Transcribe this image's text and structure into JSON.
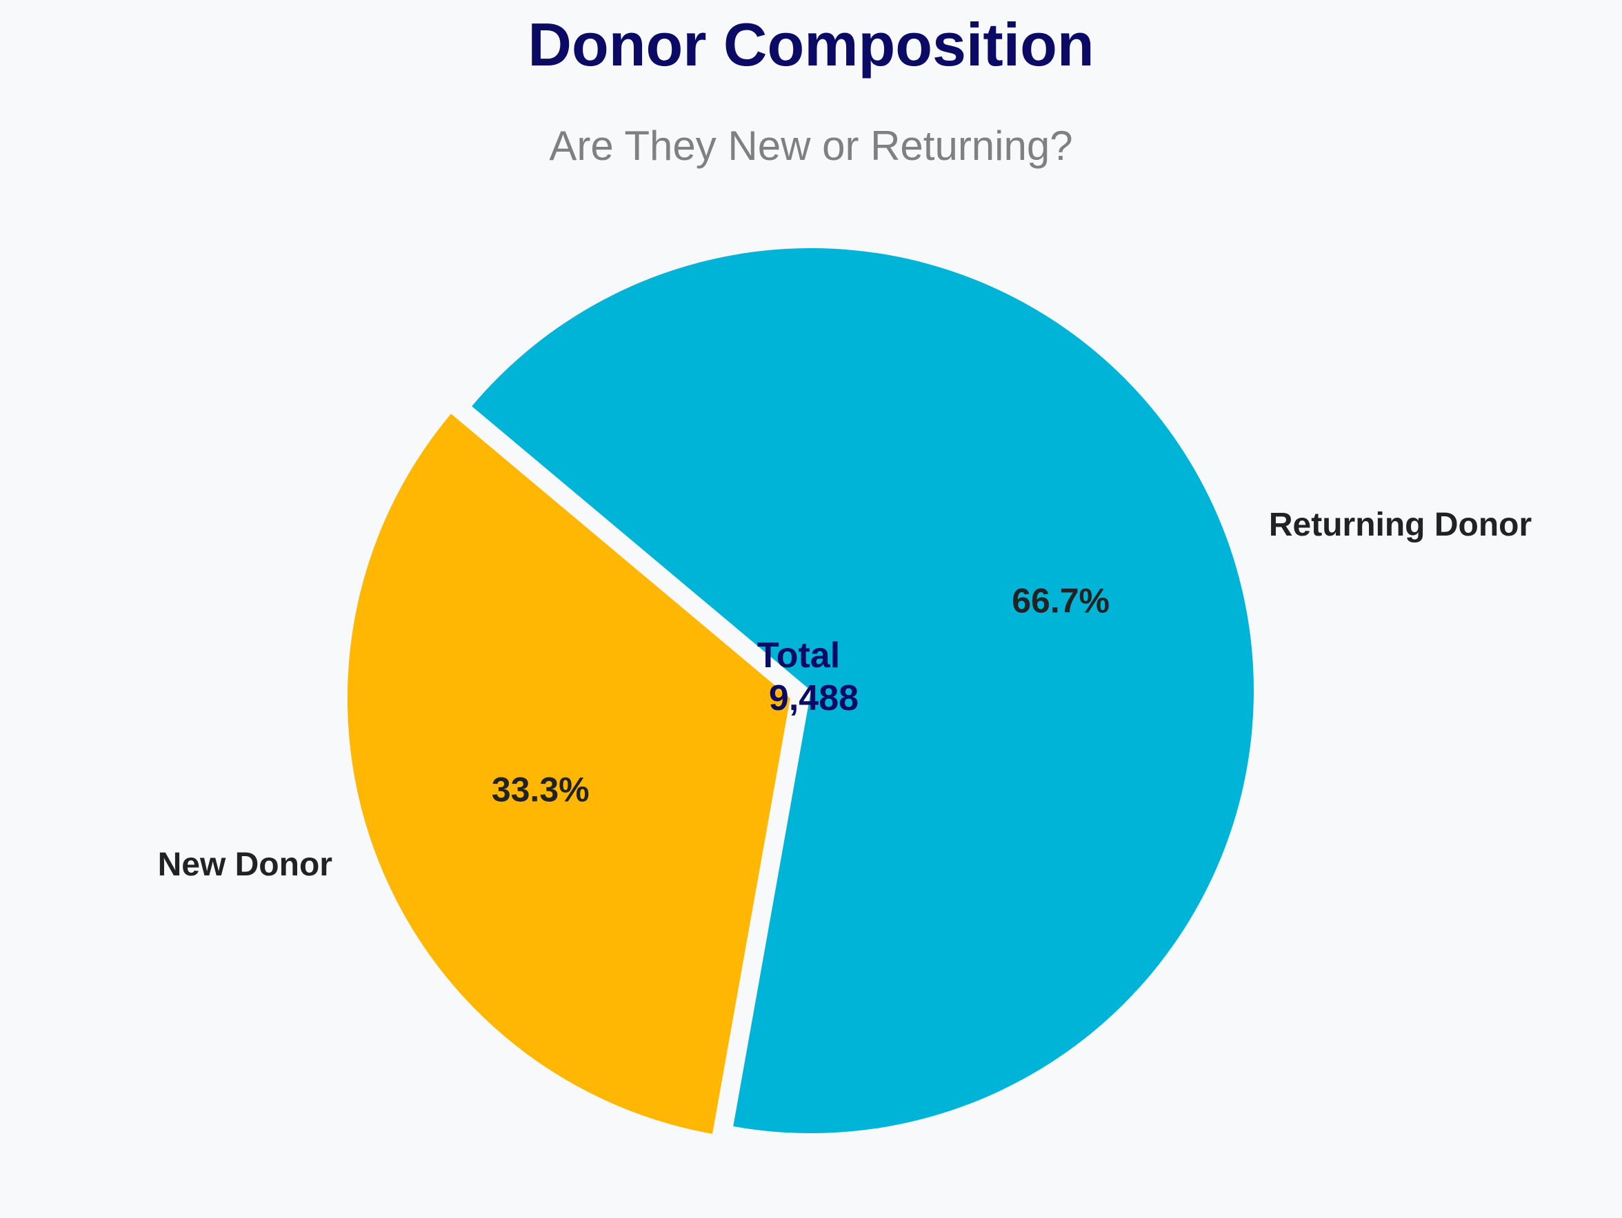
{
  "chart_data": {
    "type": "pie",
    "title": "Donor Composition",
    "subtitle": "Are They New or Returning?",
    "total_label": "Total",
    "total_value": "9,488",
    "categories": [
      "New Donor",
      "Returning Donor"
    ],
    "values": [
      33.3,
      66.7
    ],
    "value_labels": [
      "33.3%",
      "66.7%"
    ],
    "colors": [
      "#ffb703",
      "#00b4d8"
    ],
    "explode": [
      0.05,
      0
    ],
    "start_angle_deg": 140,
    "legend": "none"
  },
  "colors": {
    "background": "#f7f9fb",
    "title": "#0b0b66",
    "subtitle": "#808080",
    "labels": "#222222",
    "center": "#0b0b66"
  }
}
